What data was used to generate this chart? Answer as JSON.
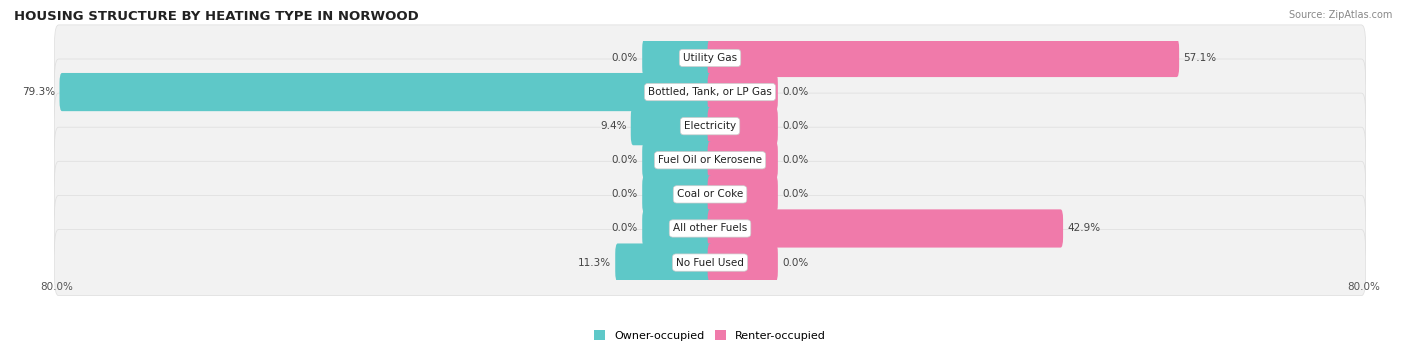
{
  "title": "HOUSING STRUCTURE BY HEATING TYPE IN NORWOOD",
  "source": "Source: ZipAtlas.com",
  "categories": [
    "Utility Gas",
    "Bottled, Tank, or LP Gas",
    "Electricity",
    "Fuel Oil or Kerosene",
    "Coal or Coke",
    "All other Fuels",
    "No Fuel Used"
  ],
  "owner_values": [
    0.0,
    79.3,
    9.4,
    0.0,
    0.0,
    0.0,
    11.3
  ],
  "renter_values": [
    57.1,
    0.0,
    0.0,
    0.0,
    0.0,
    42.9,
    0.0
  ],
  "owner_color": "#5ec8c8",
  "renter_color": "#f07aaa",
  "row_bg_color": "#f2f2f2",
  "axis_min": -80.0,
  "axis_max": 80.0,
  "min_bar_stub": 8.0,
  "bar_height": 0.52,
  "label_fontsize": 7.5,
  "title_fontsize": 9.5,
  "source_fontsize": 7,
  "category_fontsize": 7.5,
  "value_fontsize": 7.5,
  "legend_fontsize": 8
}
